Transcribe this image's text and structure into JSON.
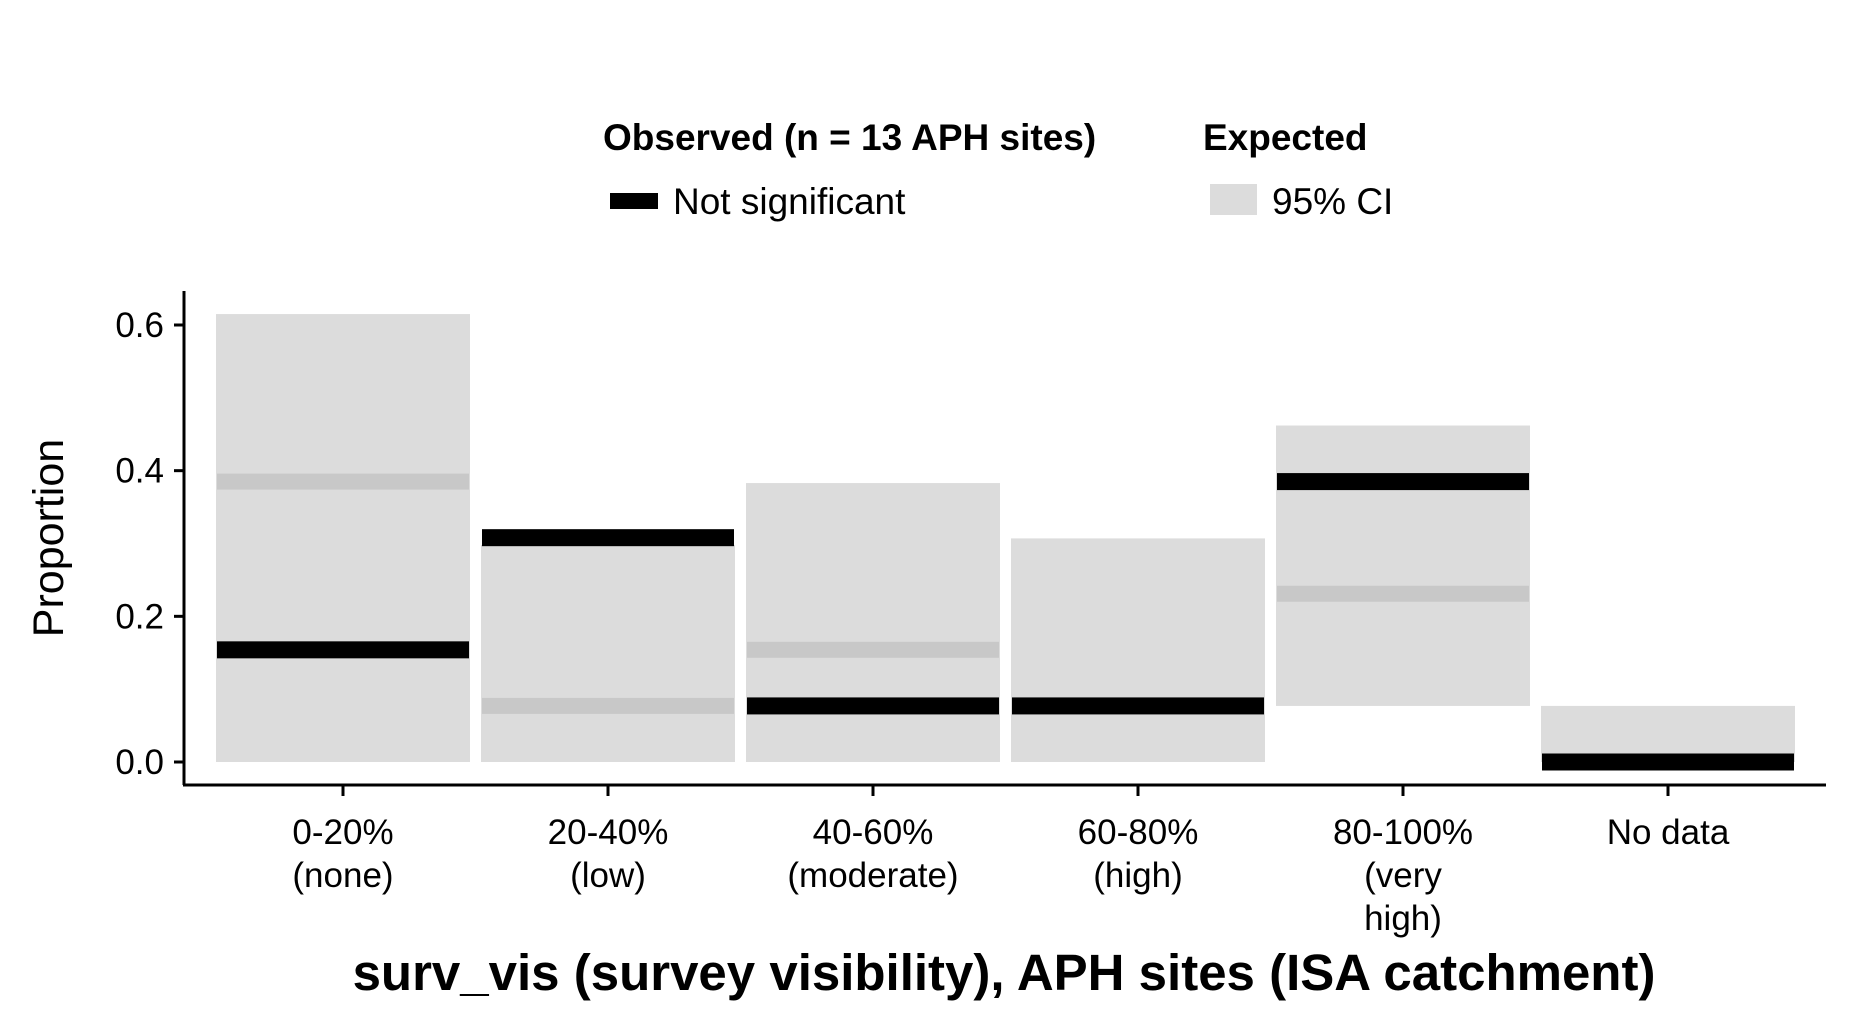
{
  "chart_data": {
    "type": "bar",
    "xlabel": "surv_vis (survey visibility), APH sites (ISA catchment)",
    "ylabel": "Proportion",
    "ylim": [
      -0.03,
      0.65
    ],
    "yticks": [
      "0.0",
      "0.2",
      "0.4",
      "0.6"
    ],
    "ytick_values": [
      0.0,
      0.2,
      0.4,
      0.6
    ],
    "grid": false,
    "legend_position": "top",
    "categories": [
      [
        "0-20%",
        "(none)"
      ],
      [
        "20-40%",
        "(low)"
      ],
      [
        "40-60%",
        "(moderate)"
      ],
      [
        "60-80%",
        "(high)"
      ],
      [
        "80-100%",
        "(very",
        "high)"
      ],
      [
        "No data"
      ]
    ],
    "expected_ci": [
      {
        "low": 0.0,
        "high": 0.615
      },
      {
        "low": 0.0,
        "high": 0.298
      },
      {
        "low": 0.0,
        "high": 0.383
      },
      {
        "low": 0.0,
        "high": 0.307
      },
      {
        "low": 0.077,
        "high": 0.462
      },
      {
        "low": 0.0,
        "high": 0.077
      }
    ],
    "expected_mean": [
      0.385,
      0.077,
      0.154,
      null,
      0.231,
      null
    ],
    "observed": [
      0.154,
      0.308,
      0.077,
      0.077,
      0.385,
      0.0
    ],
    "legend": {
      "observed_title": "Observed (n = 13 APH sites)",
      "observed_entry": "Not significant",
      "expected_title": "Expected",
      "expected_entry": "95% CI"
    },
    "colors": {
      "observed": "#000000",
      "ci_fill": "#dcdcdc",
      "expected_mean": "#c8c8c8",
      "axis": "#000000"
    }
  }
}
